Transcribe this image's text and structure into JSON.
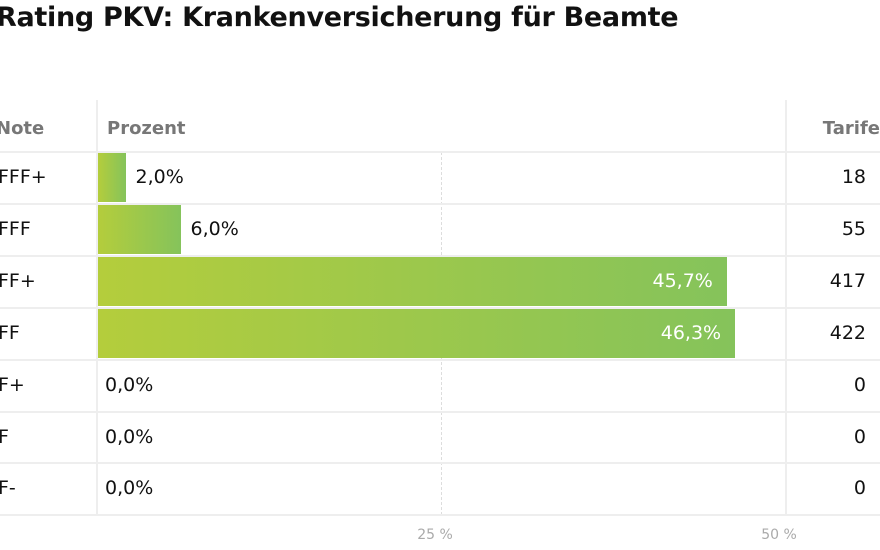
{
  "title": "Rating PKV: Krankenversicherung für Beamte",
  "chart_data": {
    "type": "bar",
    "title": "Rating PKV: Krankenversicherung für Beamte",
    "orientation": "horizontal",
    "columns": {
      "note": "Note",
      "percent": "Prozent",
      "tarife": "Tarife"
    },
    "categories": [
      "FFF+",
      "FFF",
      "FF+",
      "FF",
      "F+",
      "F",
      "F-"
    ],
    "values": [
      2.0,
      6.0,
      45.7,
      46.3,
      0.0,
      0.0,
      0.0
    ],
    "value_labels": [
      "2,0%",
      "6,0%",
      "45,7%",
      "46,3%",
      "0,0%",
      "0,0%",
      "0,0%"
    ],
    "tarife": [
      "18",
      "55",
      "417",
      "422",
      "0",
      "0",
      "0"
    ],
    "xlim": [
      0,
      50
    ],
    "ticks": [
      {
        "value": 25,
        "label": "25 %"
      },
      {
        "value": 50,
        "label": "50 %"
      }
    ],
    "colors": {
      "bar_start": "#b4cd3c",
      "bar_end": "#85c35b"
    }
  }
}
